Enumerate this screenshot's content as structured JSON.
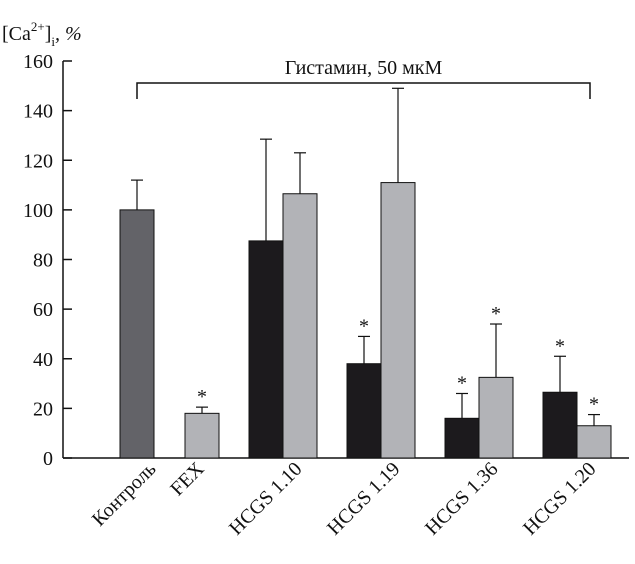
{
  "chart_data": {
    "type": "bar",
    "ylabel": {
      "base": "[Ca",
      "sup": "2+",
      "sub": "i",
      "rest": ", %"
    },
    "ylim": [
      0,
      160
    ],
    "yticks": [
      0,
      20,
      40,
      60,
      80,
      100,
      120,
      140,
      160
    ],
    "categories": [
      "Контроль",
      "FEX",
      "HCGS 1.10",
      "HCGS 1.19",
      "HCGS 1.36",
      "HCGS 1.20"
    ],
    "bracket_label": "Гистамин, 50 мкМ",
    "significance_marker": "*",
    "colors": {
      "control": "#636368",
      "black": "#1c1a1d",
      "gray": "#b2b3b7"
    },
    "bars": [
      {
        "category": 0,
        "slot": "center",
        "color": "control",
        "value": 100,
        "error": 12,
        "star": false
      },
      {
        "category": 1,
        "slot": "right",
        "color": "gray",
        "value": 18,
        "error": 2.5,
        "star": true
      },
      {
        "category": 2,
        "slot": "left",
        "color": "black",
        "value": 87.5,
        "error": 41,
        "star": false
      },
      {
        "category": 2,
        "slot": "right",
        "color": "gray",
        "value": 106.5,
        "error": 16.5,
        "star": false
      },
      {
        "category": 3,
        "slot": "left",
        "color": "black",
        "value": 38,
        "error": 11,
        "star": true
      },
      {
        "category": 3,
        "slot": "right",
        "color": "gray",
        "value": 111,
        "error": 38,
        "star": false
      },
      {
        "category": 4,
        "slot": "left",
        "color": "black",
        "value": 16,
        "error": 10,
        "star": true
      },
      {
        "category": 4,
        "slot": "right",
        "color": "gray",
        "value": 32.5,
        "error": 21.5,
        "star": true
      },
      {
        "category": 5,
        "slot": "left",
        "color": "black",
        "value": 26.5,
        "error": 14.5,
        "star": true
      },
      {
        "category": 5,
        "slot": "right",
        "color": "gray",
        "value": 13,
        "error": 4.5,
        "star": true
      }
    ]
  }
}
